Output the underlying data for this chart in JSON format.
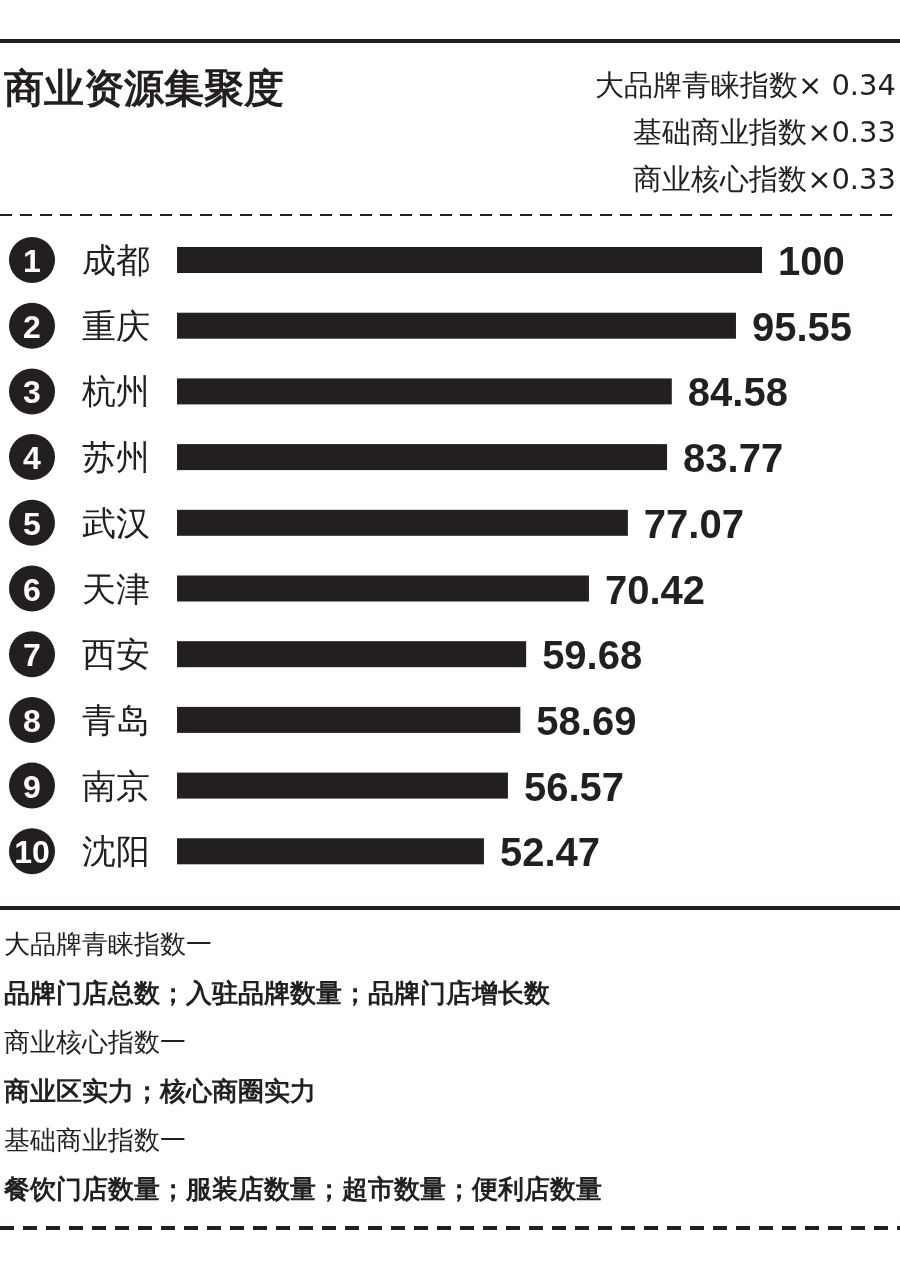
{
  "chart_data": {
    "type": "bar",
    "orientation": "horizontal",
    "title": "商业资源集聚度",
    "categories": [
      "成都",
      "重庆",
      "杭州",
      "苏州",
      "武汉",
      "天津",
      "西安",
      "青岛",
      "南京",
      "沈阳"
    ],
    "values": [
      100,
      95.55,
      84.58,
      83.77,
      77.07,
      70.42,
      59.68,
      58.69,
      56.57,
      52.47
    ],
    "color": "#231f20",
    "xlim": [
      0,
      100
    ],
    "data_labels": true,
    "tick_labels": false,
    "annotations": [
      "1",
      "2",
      "3",
      "4",
      "5",
      "6",
      "7",
      "8",
      "9",
      "10",
      "大品牌青睐指数× 0.34",
      "基础商业指数×0.33",
      "商业核心指数×0.33",
      "大品牌青睐指数一",
      "品牌门店总数；入驻品牌数量；品牌门店增长数",
      "商业核心指数一",
      "商业区实力；核心商圈实力",
      "基础商业指数一",
      "餐饮门店数量；服装店数量；超市数量；便利店数量"
    ]
  }
}
